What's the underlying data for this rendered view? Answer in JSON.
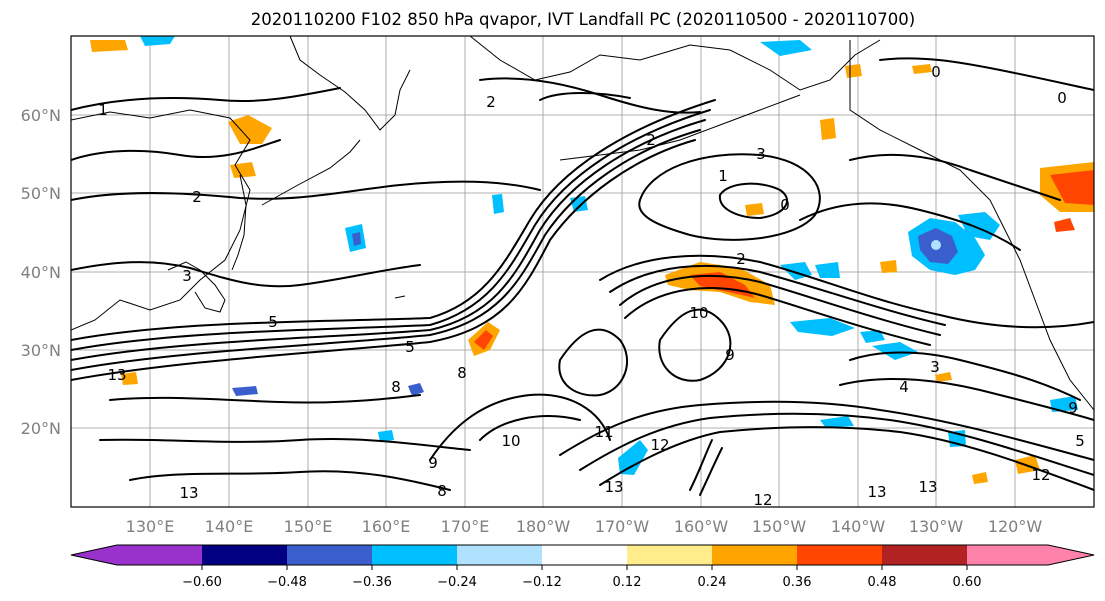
{
  "title": "2020110200 F102 850 hPa qvapor, IVT Landfall PC (2020110500 - 2020110700)",
  "lat_labels": [
    "60°N",
    "50°N",
    "40°N",
    "30°N",
    "20°N"
  ],
  "lon_labels": [
    "130°E",
    "140°E",
    "150°E",
    "160°E",
    "170°E",
    "180°W",
    "170°W",
    "160°W",
    "150°W",
    "140°W",
    "130°W",
    "120°W"
  ],
  "colorbar": {
    "ticks": [
      "−0.60",
      "−0.48",
      "−0.36",
      "−0.24",
      "−0.12",
      "0.12",
      "0.24",
      "0.36",
      "0.48",
      "0.60"
    ],
    "colors": {
      "under": "#9932cc",
      "c1": "#000080",
      "c2": "#3a5fcd",
      "c3": "#00bfff",
      "c4": "#b0e2ff",
      "c5": "#ffffff",
      "c6": "#ffec8b",
      "c7": "#ffa500",
      "c8": "#ff4500",
      "c9": "#b22222",
      "over": "#ff82ab"
    }
  },
  "contour_labels": [
    {
      "text": "1"
    },
    {
      "text": "2"
    },
    {
      "text": "3"
    },
    {
      "text": "5"
    },
    {
      "text": "13"
    },
    {
      "text": "13"
    },
    {
      "text": "2"
    },
    {
      "text": "2"
    },
    {
      "text": "3"
    },
    {
      "text": "1"
    },
    {
      "text": "0"
    },
    {
      "text": "0"
    },
    {
      "text": "0"
    },
    {
      "text": "10"
    },
    {
      "text": "9"
    },
    {
      "text": "5"
    },
    {
      "text": "4"
    },
    {
      "text": "3"
    },
    {
      "text": "8"
    },
    {
      "text": "10"
    },
    {
      "text": "11"
    },
    {
      "text": "12"
    },
    {
      "text": "13"
    },
    {
      "text": "12"
    },
    {
      "text": "13"
    },
    {
      "text": "12"
    },
    {
      "text": "5"
    },
    {
      "text": "9"
    },
    {
      "text": "8"
    },
    {
      "text": "2"
    },
    {
      "text": "9"
    },
    {
      "text": "8"
    },
    {
      "text": "13"
    }
  ]
}
